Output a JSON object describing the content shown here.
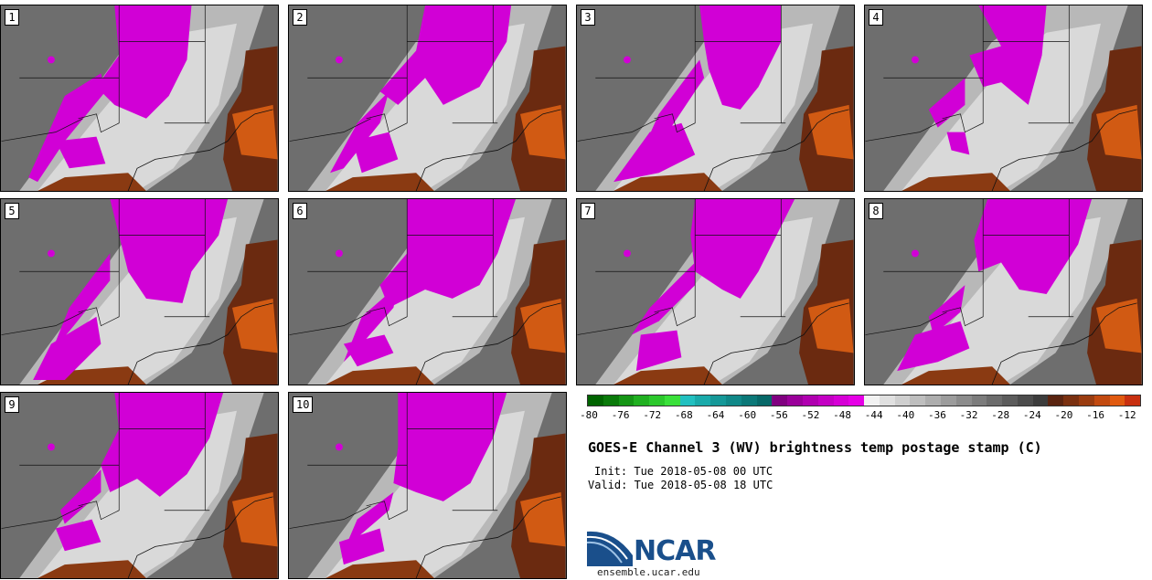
{
  "title": "GOES-E Channel 3 (WV) brightness temp postage stamp (C)",
  "init_time": "Init: Tue 2018-05-08 00 UTC",
  "valid_time": "Valid: Tue 2018-05-08 18 UTC",
  "site": "ensemble.ucar.edu",
  "logo_text": "NCAR",
  "members": [
    "1",
    "2",
    "3",
    "4",
    "5",
    "6",
    "7",
    "8",
    "9",
    "10"
  ],
  "colorbar": {
    "unit": "C",
    "tick_labels": [
      "-80",
      "-76",
      "-72",
      "-68",
      "-64",
      "-60",
      "-56",
      "-52",
      "-48",
      "-44",
      "-40",
      "-36",
      "-32",
      "-28",
      "-24",
      "-20",
      "-16",
      "-12"
    ],
    "tick_values": [
      -80,
      -76,
      -72,
      -68,
      -64,
      -60,
      -56,
      -52,
      -48,
      -44,
      -40,
      -36,
      -32,
      -28,
      -24,
      -20,
      -16,
      -12
    ],
    "range": [
      -80,
      -10
    ],
    "colors": [
      "#006400",
      "#0a7a0a",
      "#159515",
      "#20b020",
      "#2cc82c",
      "#3ae03a",
      "#22c0c0",
      "#1aaaaa",
      "#159898",
      "#108888",
      "#0b7878",
      "#076868",
      "#800080",
      "#9a009a",
      "#b000b0",
      "#c400c4",
      "#d600d6",
      "#e600e6",
      "#f2f2f2",
      "#e0e0e0",
      "#cfcfcf",
      "#bebebe",
      "#adadad",
      "#9c9c9c",
      "#8c8c8c",
      "#7c7c7c",
      "#6c6c6c",
      "#5c5c5c",
      "#4c4c4c",
      "#3c3c3c",
      "#5a2410",
      "#7a3010",
      "#9a3c10",
      "#c24a10",
      "#e05a10",
      "#c83010"
    ]
  },
  "colors": {
    "moist": "#d100d6",
    "background_gray": "#6e6e6e",
    "dry_orange": "#d15a13",
    "ncar_blue": "#1a4f8b"
  }
}
